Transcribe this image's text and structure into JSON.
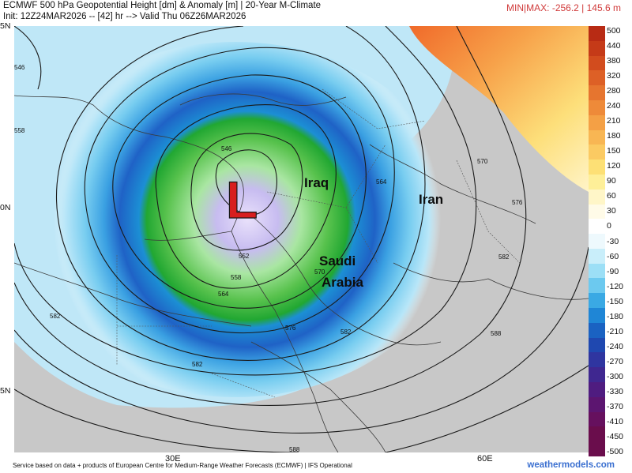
{
  "header": {
    "line1": "ECMWF 500 hPa Geopotential Height [dm] & Anomaly [m] | 20-Year M-Climate",
    "line2": "Init: 12Z24MAR2026 -- [42] hr --> Valid Thu 06Z26MAR2026",
    "minmax": "MIN|MAX: -256.2 | 145.6 m"
  },
  "axes": {
    "lat_labels": [
      "5N",
      "0N",
      "5N"
    ],
    "lon_labels": [
      "30E",
      "60E"
    ]
  },
  "map": {
    "low_symbol": "L",
    "low_color": "#d81e1e",
    "countries": [
      "Iraq",
      "Iran",
      "Saudi",
      "Arabia"
    ],
    "contour_labels": [
      "546",
      "546",
      "552",
      "558",
      "558",
      "564",
      "564",
      "570",
      "570",
      "576",
      "576",
      "582",
      "582",
      "582",
      "582",
      "588",
      "588"
    ]
  },
  "colorbar": {
    "ticks": [
      "500",
      "440",
      "380",
      "320",
      "280",
      "240",
      "210",
      "180",
      "150",
      "120",
      "90",
      "60",
      "30",
      "0",
      "-30",
      "-60",
      "-90",
      "-120",
      "-150",
      "-180",
      "-210",
      "-240",
      "-270",
      "-300",
      "-330",
      "-370",
      "-410",
      "-450",
      "-500"
    ],
    "colors": [
      "#b82b14",
      "#c53a18",
      "#d24c1e",
      "#dd6026",
      "#e6752f",
      "#ee8a39",
      "#f4a045",
      "#f8b653",
      "#fbca62",
      "#fde075",
      "#feef98",
      "#fff6c8",
      "#fffbe8",
      "#ffffff",
      "#eef9fd",
      "#c9eefa",
      "#9cdff6",
      "#6cc9ef",
      "#3aa9e4",
      "#1f86d6",
      "#1a62c2",
      "#1f48b0",
      "#2f35a0",
      "#3f2790",
      "#4f1c80",
      "#5c1570",
      "#66105e",
      "#6a0d4c",
      "#6a0d4c"
    ]
  },
  "footer": {
    "text": "Service based on data + products of European Centre for Medium-Range Weather Forecasts (ECMWF) | IFS Operational",
    "brand": "weathermodels.com"
  }
}
